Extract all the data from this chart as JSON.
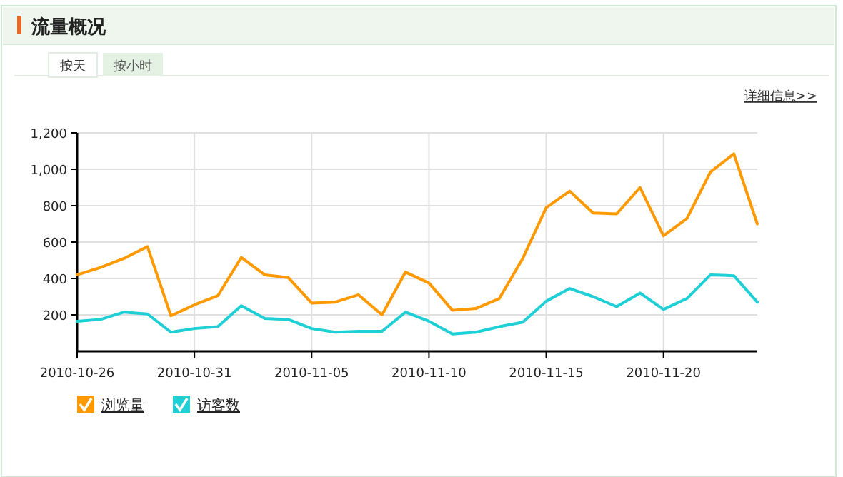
{
  "chart_data": {
    "type": "line",
    "title": "流量概况",
    "annotations": [
      "按天",
      "按小时",
      "详细信息>>"
    ],
    "x": [
      "2010-10-26",
      "2010-10-27",
      "2010-10-28",
      "2010-10-29",
      "2010-10-30",
      "2010-10-31",
      "2010-11-01",
      "2010-11-02",
      "2010-11-03",
      "2010-11-04",
      "2010-11-05",
      "2010-11-06",
      "2010-11-07",
      "2010-11-08",
      "2010-11-09",
      "2010-11-10",
      "2010-11-11",
      "2010-11-12",
      "2010-11-13",
      "2010-11-14",
      "2010-11-15",
      "2010-11-16",
      "2010-11-17",
      "2010-11-18",
      "2010-11-19",
      "2010-11-20",
      "2010-11-21",
      "2010-11-22",
      "2010-11-23",
      "2010-11-24"
    ],
    "series": [
      {
        "name": "浏览量",
        "color": "#ff9900",
        "values": [
          420,
          460,
          510,
          575,
          195,
          255,
          305,
          515,
          420,
          405,
          265,
          270,
          310,
          200,
          435,
          375,
          225,
          235,
          290,
          510,
          790,
          880,
          760,
          755,
          900,
          635,
          730,
          985,
          1085,
          700
        ]
      },
      {
        "name": "访客数",
        "color": "#1fcfd6",
        "values": [
          165,
          175,
          215,
          205,
          105,
          125,
          135,
          250,
          180,
          175,
          125,
          105,
          110,
          110,
          215,
          165,
          95,
          105,
          135,
          160,
          275,
          345,
          300,
          245,
          320,
          230,
          290,
          420,
          415,
          270
        ]
      }
    ],
    "xlim": [
      "2010-10-26",
      "2010-11-24"
    ],
    "xticks": [
      "2010-10-26",
      "2010-10-31",
      "2010-11-05",
      "2010-11-10",
      "2010-11-15",
      "2010-11-20"
    ],
    "ylim": [
      0,
      1200
    ],
    "yticks": [
      {
        "value": 200,
        "label": "200"
      },
      {
        "value": 400,
        "label": "400"
      },
      {
        "value": 600,
        "label": "600"
      },
      {
        "value": 800,
        "label": "800"
      },
      {
        "value": 1000,
        "label": "1,000"
      },
      {
        "value": 1200,
        "label": "1,200"
      }
    ],
    "grid": true,
    "legend": "bottom left",
    "line_style": "solid"
  }
}
